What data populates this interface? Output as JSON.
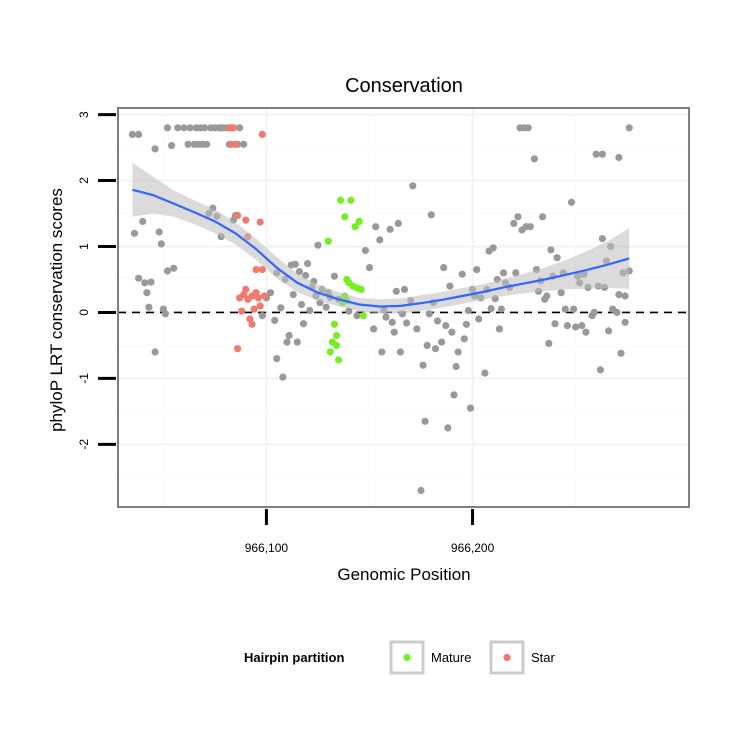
{
  "chart_data": {
    "type": "scatter",
    "title": "Conservation",
    "xlabel": "Genomic Position",
    "ylabel": "phyloP LRT conservation scores",
    "xlim": [
      966028,
      966305
    ],
    "ylim": [
      -2.95,
      3.1
    ],
    "x_ticks": [
      966100,
      966200
    ],
    "x_tick_labels": [
      "966,100",
      "966,200"
    ],
    "y_ticks": [
      -2,
      -1,
      0,
      1,
      2,
      3
    ],
    "y_tick_labels": [
      "-2",
      "-1",
      "0",
      "1",
      "2",
      "3"
    ],
    "grid": true,
    "reference_line": {
      "y": 0,
      "style": "dashed"
    },
    "legend": {
      "title": "Hairpin partition",
      "position": "bottom",
      "entries": [
        {
          "label": "Mature",
          "color": "#77ee22"
        },
        {
          "label": "Star",
          "color": "#f07a6e"
        }
      ]
    },
    "colors": {
      "other": "#999999",
      "smooth_line": "#3366ff",
      "ribbon": "#bebebe"
    },
    "series": [
      {
        "color": "#999999",
        "points": [
          [
            966035,
            2.7
          ],
          [
            966038,
            2.7
          ],
          [
            966036,
            1.2
          ],
          [
            966038,
            0.52
          ],
          [
            966040,
            1.38
          ],
          [
            966041,
            0.45
          ],
          [
            966042,
            0.3
          ],
          [
            966043,
            0.08
          ],
          [
            966044,
            0.46
          ],
          [
            966046,
            -0.6
          ],
          [
            966046,
            2.48
          ],
          [
            966048,
            1.22
          ],
          [
            966049,
            1.04
          ],
          [
            966050,
            0.05
          ],
          [
            966051,
            -0.02
          ],
          [
            966052,
            2.8
          ],
          [
            966052,
            0.63
          ],
          [
            966054,
            2.53
          ],
          [
            966055,
            0.67
          ],
          [
            966057,
            2.8
          ],
          [
            966060,
            2.8
          ],
          [
            966062,
            2.55
          ],
          [
            966063,
            2.8
          ],
          [
            966065,
            2.55
          ],
          [
            966066,
            2.8
          ],
          [
            966067,
            2.55
          ],
          [
            966068,
            2.8
          ],
          [
            966069,
            2.55
          ],
          [
            966070,
            2.8
          ],
          [
            966071,
            2.55
          ],
          [
            966072,
            1.5
          ],
          [
            966073,
            2.8
          ],
          [
            966074,
            1.58
          ],
          [
            966075,
            2.8
          ],
          [
            966076,
            1.46
          ],
          [
            966077,
            2.8
          ],
          [
            966078,
            1.15
          ],
          [
            966078,
            2.8
          ],
          [
            966079,
            2.8
          ],
          [
            966081,
            2.8
          ],
          [
            966082,
            2.55
          ],
          [
            966083,
            2.8
          ],
          [
            966084,
            1.4
          ],
          [
            966084,
            2.8
          ],
          [
            966086,
            2.55
          ],
          [
            966087,
            2.8
          ],
          [
            966089,
            2.55
          ],
          [
            966085,
            1.47
          ],
          [
            966098,
            -0.05
          ],
          [
            966100,
            0.22
          ],
          [
            966102,
            0.3
          ],
          [
            966104,
            -0.12
          ],
          [
            966105,
            0.6
          ],
          [
            966105,
            -0.7
          ],
          [
            966107,
            0.07
          ],
          [
            966108,
            -0.98
          ],
          [
            966109,
            0.5
          ],
          [
            966110,
            -0.45
          ],
          [
            966111,
            -0.35
          ],
          [
            966112,
            0.72
          ],
          [
            966113,
            0.27
          ],
          [
            966114,
            0.73
          ],
          [
            966115,
            -0.45
          ],
          [
            966116,
            0.62
          ],
          [
            966117,
            0.12
          ],
          [
            966118,
            -0.17
          ],
          [
            966119,
            0.56
          ],
          [
            966120,
            0.74
          ],
          [
            966121,
            0.03
          ],
          [
            966122,
            0.38
          ],
          [
            966123,
            0.47
          ],
          [
            966124,
            0.25
          ],
          [
            966125,
            1.02
          ],
          [
            966126,
            0.15
          ],
          [
            966127,
            0.35
          ],
          [
            966129,
            0.08
          ],
          [
            966130,
            0.3
          ],
          [
            966131,
            0.23
          ],
          [
            966133,
            0.55
          ],
          [
            966135,
            0.2
          ],
          [
            966140,
            0.02
          ],
          [
            966144,
            -0.05
          ],
          [
            966148,
            0.94
          ],
          [
            966150,
            0.68
          ],
          [
            966152,
            -0.25
          ],
          [
            966153,
            1.3
          ],
          [
            966155,
            1.1
          ],
          [
            966156,
            -0.6
          ],
          [
            966157,
            0.04
          ],
          [
            966158,
            -0.07
          ],
          [
            966160,
            1.26
          ],
          [
            966161,
            -0.15
          ],
          [
            966162,
            -0.3
          ],
          [
            966163,
            0.32
          ],
          [
            966164,
            1.35
          ],
          [
            966165,
            -0.6
          ],
          [
            966166,
            -0.02
          ],
          [
            966167,
            0.35
          ],
          [
            966168,
            -0.16
          ],
          [
            966170,
            0.18
          ],
          [
            966171,
            1.92
          ],
          [
            966173,
            -0.25
          ],
          [
            966175,
            -2.7
          ],
          [
            966176,
            -0.8
          ],
          [
            966177,
            -1.65
          ],
          [
            966178,
            -0.5
          ],
          [
            966179,
            -0.02
          ],
          [
            966180,
            1.48
          ],
          [
            966181,
            0.15
          ],
          [
            966182,
            -0.55
          ],
          [
            966183,
            -0.13
          ],
          [
            966185,
            -0.45
          ],
          [
            966186,
            0.68
          ],
          [
            966187,
            -0.2
          ],
          [
            966188,
            -1.75
          ],
          [
            966189,
            0.4
          ],
          [
            966190,
            -0.3
          ],
          [
            966191,
            -1.25
          ],
          [
            966192,
            -0.82
          ],
          [
            966193,
            -0.6
          ],
          [
            966195,
            0.58
          ],
          [
            966196,
            -0.4
          ],
          [
            966197,
            -0.18
          ],
          [
            966198,
            0.03
          ],
          [
            966199,
            -1.45
          ],
          [
            966200,
            0.35
          ],
          [
            966201,
            0.25
          ],
          [
            966202,
            0.65
          ],
          [
            966203,
            -0.1
          ],
          [
            966204,
            0.22
          ],
          [
            966206,
            -0.92
          ],
          [
            966207,
            0.35
          ],
          [
            966208,
            0.93
          ],
          [
            966209,
            0.06
          ],
          [
            966210,
            0.98
          ],
          [
            966211,
            0.21
          ],
          [
            966212,
            0.5
          ],
          [
            966213,
            -0.25
          ],
          [
            966214,
            0.05
          ],
          [
            966215,
            0.6
          ],
          [
            966216,
            0.45
          ],
          [
            966218,
            0.38
          ],
          [
            966220,
            1.35
          ],
          [
            966221,
            0.6
          ],
          [
            966222,
            1.45
          ],
          [
            966223,
            2.8
          ],
          [
            966224,
            1.25
          ],
          [
            966225,
            2.8
          ],
          [
            966226,
            1.3
          ],
          [
            966227,
            2.8
          ],
          [
            966228,
            1.3
          ],
          [
            966230,
            2.33
          ],
          [
            966231,
            0.65
          ],
          [
            966232,
            0.32
          ],
          [
            966233,
            0.48
          ],
          [
            966234,
            1.45
          ],
          [
            966235,
            0.2
          ],
          [
            966236,
            0.25
          ],
          [
            966237,
            -0.47
          ],
          [
            966238,
            0.95
          ],
          [
            966239,
            0.55
          ],
          [
            966240,
            -0.17
          ],
          [
            966241,
            0.83
          ],
          [
            966243,
            0.3
          ],
          [
            966244,
            0.6
          ],
          [
            966245,
            0.05
          ],
          [
            966246,
            -0.2
          ],
          [
            966248,
            1.67
          ],
          [
            966249,
            0.05
          ],
          [
            966250,
            -0.22
          ],
          [
            966251,
            0.55
          ],
          [
            966252,
            0.45
          ],
          [
            966253,
            -0.2
          ],
          [
            966254,
            0.58
          ],
          [
            966255,
            -0.3
          ],
          [
            966256,
            0.38
          ],
          [
            966258,
            -0.05
          ],
          [
            966259,
            0.0
          ],
          [
            966260,
            2.4
          ],
          [
            966261,
            0.4
          ],
          [
            966262,
            -0.87
          ],
          [
            966263,
            1.12
          ],
          [
            966263,
            2.4
          ],
          [
            966264,
            0.38
          ],
          [
            966265,
            0.78
          ],
          [
            966266,
            -0.28
          ],
          [
            966267,
            1.0
          ],
          [
            966268,
            0.05
          ],
          [
            966270,
            0.0
          ],
          [
            966271,
            2.35
          ],
          [
            966271,
            0.27
          ],
          [
            966272,
            -0.62
          ],
          [
            966273,
            0.6
          ],
          [
            966274,
            -0.15
          ],
          [
            966274,
            0.25
          ],
          [
            966276,
            2.8
          ],
          [
            966276,
            0.63
          ]
        ]
      },
      {
        "name": "Mature",
        "color": "#77ee22",
        "points": [
          [
            966136,
            1.7
          ],
          [
            966137,
            0.15
          ],
          [
            966138,
            1.45
          ],
          [
            966139,
            0.5
          ],
          [
            966140,
            0.45
          ],
          [
            966141,
            1.7
          ],
          [
            966142,
            0.4
          ],
          [
            966143,
            1.3
          ],
          [
            966144,
            0.37
          ],
          [
            966145,
            1.38
          ],
          [
            966146,
            0.35
          ],
          [
            966147,
            -0.05
          ],
          [
            966138,
            0.25
          ],
          [
            966139,
            0.18
          ],
          [
            966133,
            -0.18
          ],
          [
            966132,
            -0.45
          ],
          [
            966131,
            -0.6
          ],
          [
            966134,
            -0.35
          ],
          [
            966135,
            -0.72
          ],
          [
            966130,
            1.08
          ],
          [
            966134,
            -0.5
          ]
        ]
      },
      {
        "name": "Star",
        "color": "#f07a6e",
        "points": [
          [
            966082,
            2.8
          ],
          [
            966084,
            2.8
          ],
          [
            966083,
            2.55
          ],
          [
            966085,
            2.55
          ],
          [
            966098,
            2.7
          ],
          [
            966086,
            1.47
          ],
          [
            966090,
            1.4
          ],
          [
            966091,
            1.15
          ],
          [
            966095,
            0.65
          ],
          [
            966097,
            1.37
          ],
          [
            966098,
            0.65
          ],
          [
            966086,
            -0.55
          ],
          [
            966087,
            0.22
          ],
          [
            966088,
            0.02
          ],
          [
            966089,
            0.27
          ],
          [
            966090,
            0.35
          ],
          [
            966091,
            0.2
          ],
          [
            966092,
            -0.1
          ],
          [
            966093,
            0.25
          ],
          [
            966094,
            0.05
          ],
          [
            966095,
            0.3
          ],
          [
            966096,
            0.22
          ],
          [
            966097,
            0.1
          ],
          [
            966093,
            -0.18
          ],
          [
            966099,
            0.25
          ]
        ]
      }
    ],
    "smooth": {
      "x": [
        966035,
        966045,
        966055,
        966065,
        966075,
        966085,
        966095,
        966105,
        966115,
        966125,
        966135,
        966145,
        966155,
        966165,
        966175,
        966185,
        966195,
        966205,
        966215,
        966225,
        966235,
        966245,
        966255,
        966265,
        966276
      ],
      "y": [
        1.86,
        1.78,
        1.65,
        1.52,
        1.38,
        1.2,
        0.96,
        0.68,
        0.45,
        0.3,
        0.2,
        0.12,
        0.09,
        0.1,
        0.14,
        0.19,
        0.25,
        0.31,
        0.38,
        0.44,
        0.5,
        0.57,
        0.64,
        0.72,
        0.82
      ],
      "lower": [
        1.45,
        1.5,
        1.45,
        1.34,
        1.2,
        1.03,
        0.8,
        0.52,
        0.31,
        0.18,
        0.09,
        0.02,
        -0.02,
        -0.01,
        0.02,
        0.07,
        0.13,
        0.19,
        0.25,
        0.29,
        0.32,
        0.35,
        0.36,
        0.37,
        0.36
      ],
      "upper": [
        2.27,
        2.06,
        1.85,
        1.7,
        1.56,
        1.37,
        1.12,
        0.84,
        0.59,
        0.42,
        0.31,
        0.22,
        0.2,
        0.21,
        0.26,
        0.31,
        0.37,
        0.43,
        0.51,
        0.59,
        0.68,
        0.79,
        0.92,
        1.07,
        1.28
      ]
    }
  }
}
